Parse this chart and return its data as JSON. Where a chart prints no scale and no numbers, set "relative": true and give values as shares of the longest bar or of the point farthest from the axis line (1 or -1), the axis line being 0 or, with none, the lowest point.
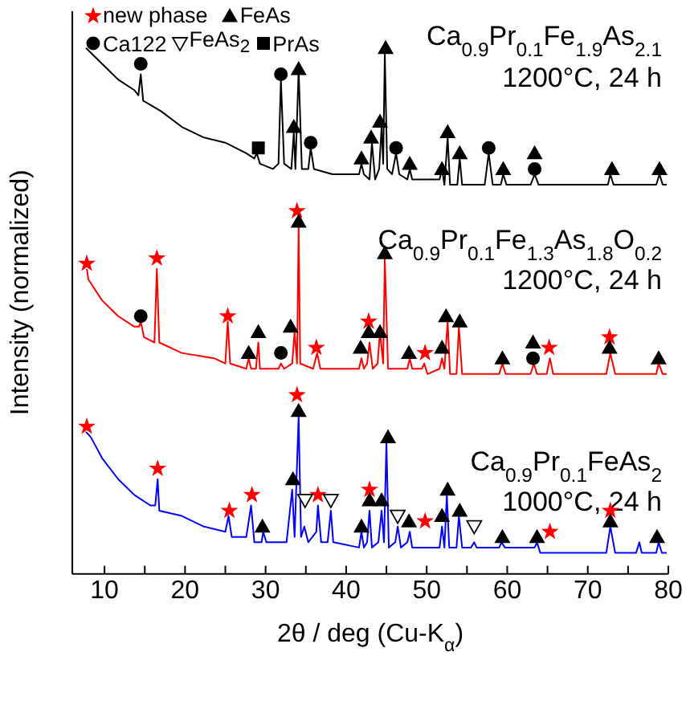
{
  "chart_data": {
    "type": "line",
    "relative": true,
    "xlabel": "2$^{}$θ / deg (Cu-K$_{α}$)",
    "ylabel": "Intensity (normalized)",
    "xlim": [
      6,
      80
    ],
    "xticks": [
      10,
      {
        "value": 15,
        "label": null
      },
      20,
      {
        "value": 25,
        "label": null
      },
      30,
      {
        "value": 35,
        "label": null
      },
      40,
      {
        "value": 45,
        "label": null
      },
      50,
      {
        "value": 55,
        "label": null
      },
      60,
      {
        "value": 65,
        "label": null
      },
      70,
      {
        "value": 75,
        "label": null
      },
      80
    ],
    "legend": "top left",
    "grid": false,
    "line_style": "solid",
    "annotations": [
      "Ca$_{0.9}$Pr$_{0.1}$Fe$_{1.9}$As$_{2.1}$",
      "1200°C, 24 h",
      "Ca$_{0.9}$Pr$_{0.1}$Fe$_{1.3}$As$_{1.8}$O$_{0.2}$",
      "1200°C, 24 h",
      "Ca$_{0.9}$Pr$_{0.1}$FeAs$_{2}$",
      "1000°C, 24 h"
    ],
    "series": [
      {
        "type": "line",
        "color": "#000000",
        "x": [
          7.7,
          9.7,
          11.7,
          13.7,
          14.2,
          14.5,
          14.8,
          17.0,
          19.6,
          22.3,
          25.0,
          27.6,
          28.6,
          28.9,
          29.3,
          30.9,
          31.6,
          31.9,
          32.3,
          33.2,
          33.5,
          33.7,
          34.1,
          34.5,
          35.3,
          35.6,
          36.0,
          38.3,
          41.6,
          41.9,
          42.2,
          42.9,
          43.2,
          43.6,
          44.1,
          44.4,
          44.6,
          44.8,
          45.1,
          45.7,
          46.2,
          46.6,
          47.6,
          47.9,
          48.2,
          51.6,
          51.9,
          52.2,
          52.6,
          52.9,
          53.8,
          54.1,
          54.4,
          57.2,
          57.7,
          58.2,
          59.2,
          59.5,
          59.9,
          62.9,
          63.4,
          63.9,
          68.2,
          72.5,
          72.8,
          73.2,
          78.5,
          78.9,
          79.3,
          79.8
        ],
        "values": [
          1.0,
          0.97,
          0.94,
          0.92,
          0.91,
          0.95,
          0.9,
          0.88,
          0.85,
          0.83,
          0.82,
          0.8,
          0.79,
          0.8,
          0.78,
          0.77,
          0.78,
          0.94,
          0.78,
          0.77,
          0.84,
          0.77,
          0.96,
          0.77,
          0.77,
          0.81,
          0.77,
          0.76,
          0.76,
          0.78,
          0.76,
          0.75,
          0.82,
          0.75,
          0.77,
          0.85,
          0.78,
          0.99,
          0.77,
          0.76,
          0.8,
          0.76,
          0.75,
          0.77,
          0.75,
          0.75,
          0.77,
          0.74,
          0.83,
          0.74,
          0.74,
          0.79,
          0.74,
          0.74,
          0.8,
          0.74,
          0.74,
          0.76,
          0.74,
          0.74,
          0.76,
          0.74,
          0.74,
          0.74,
          0.76,
          0.74,
          0.74,
          0.76,
          0.74,
          0.74
        ]
      },
      {
        "type": "line",
        "color": "#ff0000",
        "x": [
          7.8,
          8.0,
          9.7,
          11.7,
          13.7,
          14.3,
          14.5,
          14.9,
          16.2,
          16.5,
          16.8,
          19.6,
          23.6,
          25.0,
          25.3,
          25.6,
          27.6,
          27.9,
          28.2,
          28.8,
          29.1,
          29.3,
          31.6,
          31.9,
          32.3,
          33.3,
          33.6,
          33.9,
          34.1,
          34.3,
          35.9,
          36.4,
          36.8,
          41.6,
          41.9,
          42.2,
          42.6,
          42.9,
          43.3,
          43.9,
          44.2,
          44.6,
          44.8,
          45.2,
          47.6,
          47.9,
          48.2,
          49.4,
          49.7,
          50.1,
          51.6,
          51.9,
          52.2,
          52.6,
          52.9,
          53.7,
          54.0,
          54.4,
          59.0,
          59.4,
          59.8,
          62.9,
          63.3,
          63.7,
          64.9,
          65.3,
          65.7,
          72.3,
          72.8,
          73.4,
          78.5,
          78.8,
          79.3,
          79.8
        ],
        "values": [
          0.58,
          0.56,
          0.52,
          0.49,
          0.47,
          0.47,
          0.48,
          0.45,
          0.44,
          0.58,
          0.44,
          0.42,
          0.41,
          0.4,
          0.48,
          0.4,
          0.39,
          0.41,
          0.39,
          0.39,
          0.44,
          0.39,
          0.39,
          0.4,
          0.39,
          0.4,
          0.46,
          0.4,
          0.66,
          0.4,
          0.39,
          0.42,
          0.39,
          0.39,
          0.41,
          0.39,
          0.4,
          0.44,
          0.39,
          0.4,
          0.46,
          0.4,
          0.6,
          0.39,
          0.39,
          0.41,
          0.39,
          0.39,
          0.4,
          0.38,
          0.39,
          0.41,
          0.39,
          0.48,
          0.38,
          0.38,
          0.47,
          0.38,
          0.38,
          0.4,
          0.38,
          0.38,
          0.4,
          0.38,
          0.38,
          0.41,
          0.38,
          0.38,
          0.42,
          0.38,
          0.38,
          0.4,
          0.38,
          0.38
        ]
      },
      {
        "type": "line",
        "color": "#0000ff",
        "x": [
          7.7,
          8.3,
          9.7,
          11.7,
          13.7,
          15.7,
          16.3,
          16.6,
          16.8,
          19.6,
          22.3,
          25.0,
          25.4,
          25.8,
          27.6,
          28.2,
          28.6,
          29.5,
          29.7,
          30.1,
          32.6,
          33.3,
          33.6,
          34.1,
          34.4,
          34.8,
          35.3,
          36.3,
          36.5,
          36.9,
          37.7,
          38.1,
          38.4,
          41.6,
          41.9,
          42.2,
          42.6,
          42.9,
          43.2,
          44.0,
          44.4,
          44.7,
          45.0,
          45.3,
          46.1,
          46.4,
          46.8,
          47.6,
          47.9,
          48.2,
          51.6,
          51.9,
          52.2,
          52.5,
          52.8,
          53.7,
          54.0,
          54.4,
          55.5,
          55.9,
          56.2,
          59.0,
          59.3,
          59.7,
          63.4,
          63.7,
          64.1,
          72.3,
          72.8,
          73.4,
          76.0,
          76.4,
          76.7,
          78.5,
          78.8,
          79.2,
          79.8
        ],
        "values": [
          0.27,
          0.26,
          0.22,
          0.18,
          0.15,
          0.13,
          0.13,
          0.18,
          0.12,
          0.11,
          0.09,
          0.08,
          0.11,
          0.07,
          0.07,
          0.13,
          0.06,
          0.06,
          0.08,
          0.06,
          0.06,
          0.16,
          0.07,
          0.3,
          0.07,
          0.09,
          0.06,
          0.08,
          0.13,
          0.06,
          0.06,
          0.12,
          0.06,
          0.05,
          0.08,
          0.05,
          0.06,
          0.12,
          0.05,
          0.06,
          0.12,
          0.06,
          0.25,
          0.05,
          0.06,
          0.09,
          0.05,
          0.06,
          0.08,
          0.05,
          0.05,
          0.09,
          0.05,
          0.15,
          0.05,
          0.05,
          0.11,
          0.05,
          0.05,
          0.06,
          0.05,
          0.05,
          0.06,
          0.05,
          0.05,
          0.06,
          0.04,
          0.04,
          0.09,
          0.04,
          0.04,
          0.06,
          0.04,
          0.04,
          0.06,
          0.04,
          0.04
        ]
      },
      {
        "type": "scatter",
        "name": "new phase",
        "color": "#ff0000",
        "marker": "star",
        "x": [
          7.8,
          16.5,
          25.3,
          33.9,
          36.3,
          42.8,
          49.8,
          65.2,
          72.7,
          7.8,
          16.6,
          25.5,
          28.3,
          33.9,
          36.5,
          42.9,
          49.8,
          65.3,
          72.8
        ],
        "values": [
          0.59,
          0.6,
          0.49,
          0.69,
          0.43,
          0.48,
          0.42,
          0.43,
          0.45,
          0.28,
          0.2,
          0.12,
          0.15,
          0.34,
          0.15,
          0.16,
          0.1,
          0.08,
          0.12
        ]
      },
      {
        "type": "scatter",
        "name": "FeAs",
        "color": "#000000",
        "marker": "triangle",
        "x": [
          33.5,
          34.1,
          41.9,
          43.1,
          44.2,
          44.9,
          47.9,
          51.9,
          52.6,
          54.1,
          59.5,
          63.4,
          73.0,
          78.9,
          27.9,
          29.1,
          33.1,
          34.1,
          41.8,
          42.8,
          44.2,
          44.8,
          47.8,
          51.9,
          52.4,
          54.1,
          59.4,
          63.2,
          72.7,
          78.8,
          29.6,
          33.4,
          34.1,
          41.9,
          42.9,
          44.4,
          45.2,
          47.8,
          51.9,
          52.6,
          54.1,
          59.4,
          63.7,
          72.8,
          78.6
        ],
        "values": [
          0.85,
          0.96,
          0.79,
          0.83,
          0.86,
          1.0,
          0.78,
          0.77,
          0.84,
          0.8,
          0.77,
          0.8,
          0.77,
          0.77,
          0.42,
          0.46,
          0.47,
          0.67,
          0.43,
          0.46,
          0.46,
          0.61,
          0.42,
          0.43,
          0.49,
          0.48,
          0.41,
          0.44,
          0.43,
          0.41,
          0.09,
          0.18,
          0.31,
          0.09,
          0.14,
          0.14,
          0.26,
          0.1,
          0.11,
          0.16,
          0.12,
          0.07,
          0.07,
          0.1,
          0.07
        ]
      },
      {
        "type": "scatter",
        "name": "Ca122",
        "color": "#000000",
        "marker": "circle",
        "x": [
          14.5,
          31.9,
          35.6,
          46.2,
          57.7,
          63.4,
          14.5,
          31.9,
          63.2
        ],
        "values": [
          0.97,
          0.95,
          0.82,
          0.81,
          0.81,
          0.77,
          0.49,
          0.42,
          0.41
        ]
      },
      {
        "type": "scatter",
        "name": "FeAs$_{2}$",
        "color": "#000000",
        "marker": "triangle-down",
        "x": [
          34.9,
          38.1,
          46.4,
          55.9
        ],
        "values": [
          0.14,
          0.14,
          0.11,
          0.09
        ]
      },
      {
        "type": "scatter",
        "name": "PrAs",
        "color": "#000000",
        "marker": "square",
        "x": [
          29.1
        ],
        "values": [
          0.81
        ]
      }
    ]
  }
}
